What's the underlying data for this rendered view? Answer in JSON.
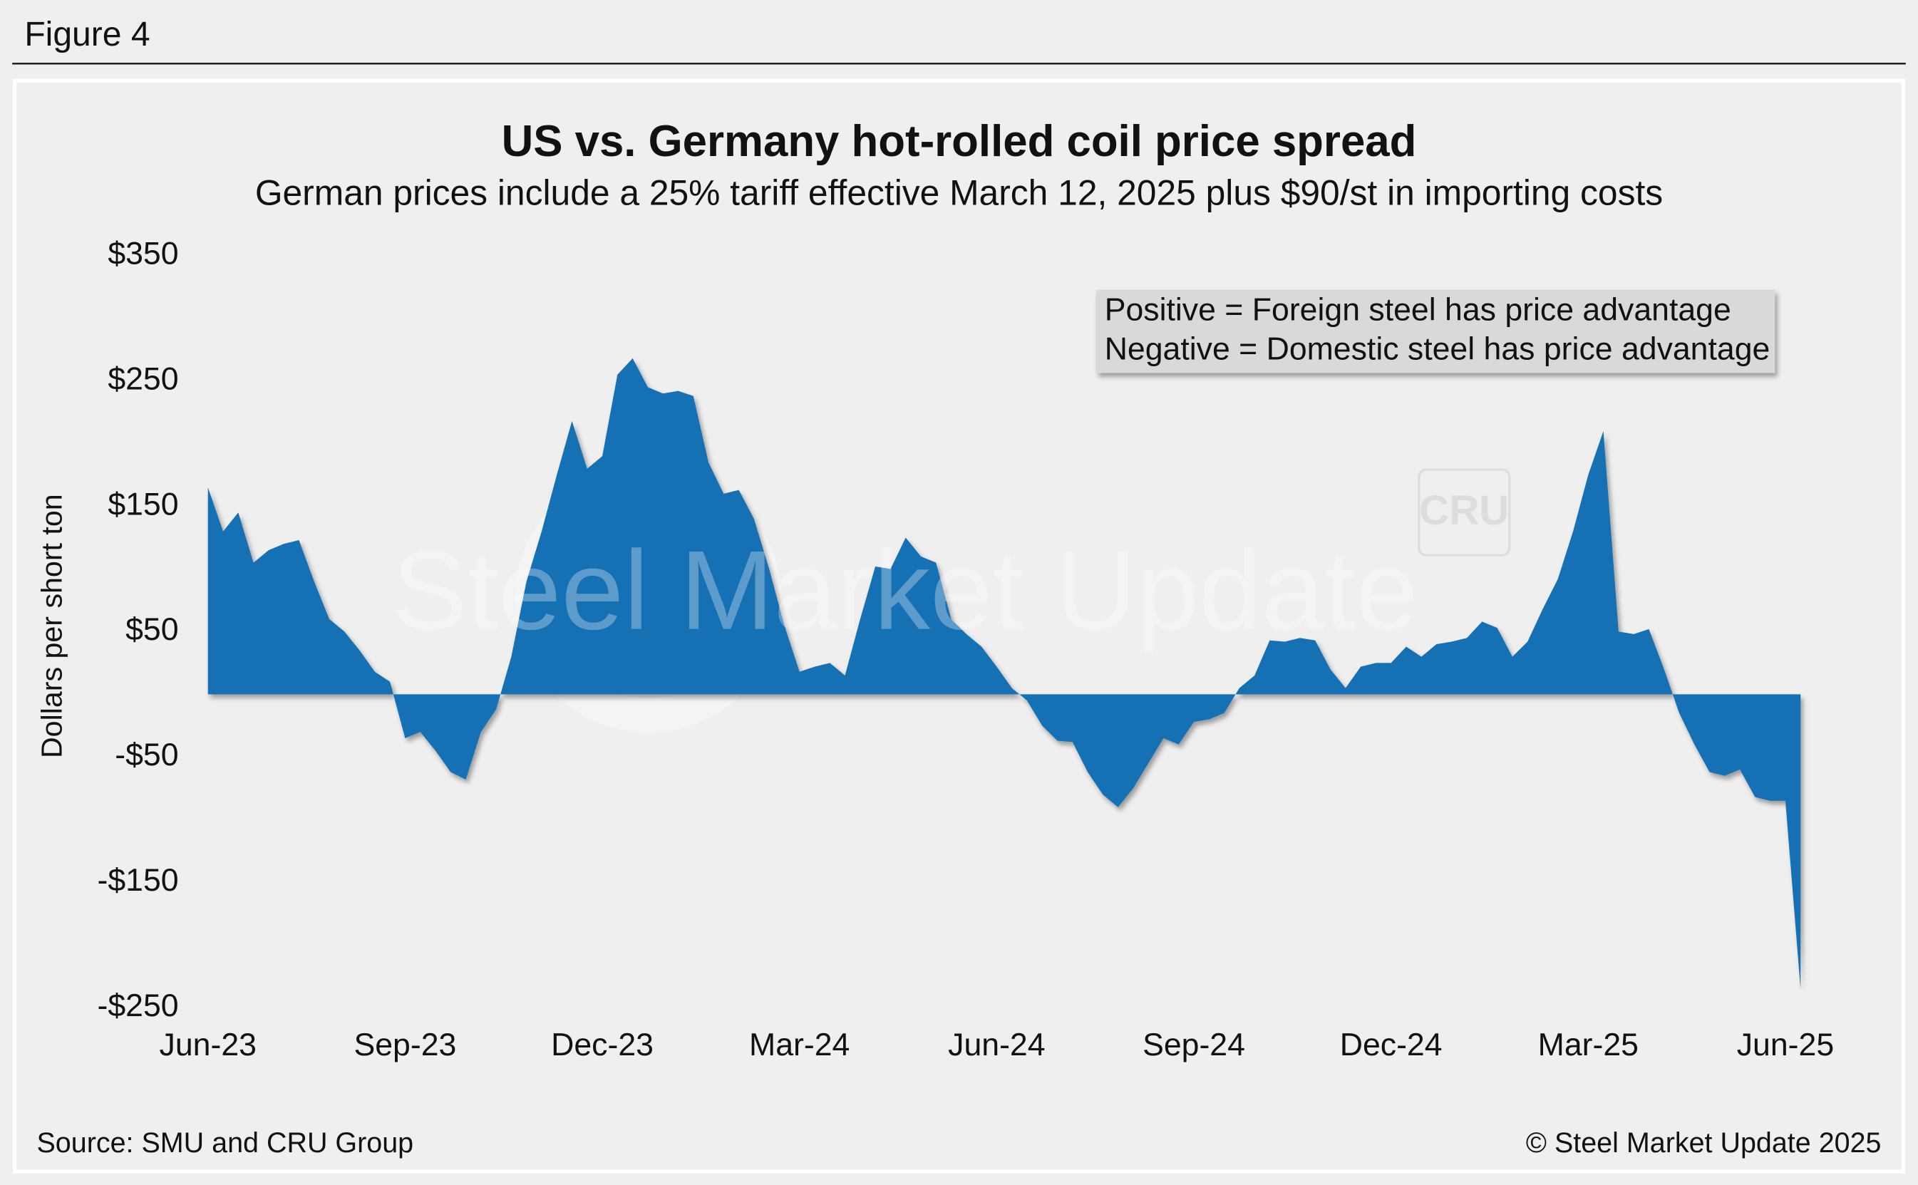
{
  "header": "Figure 4",
  "chart_data": {
    "type": "area",
    "title": "US vs. Germany hot-rolled coil price spread",
    "subtitle": "German prices include a 25% tariff effective March 12, 2025 plus $90/st in importing costs",
    "y_label": "Dollars per short ton",
    "annotation": [
      "Positive = Foreign steel has price advantage",
      "Negative = Domestic steel has price advantage"
    ],
    "watermark": [
      "Steel Market Update",
      "CRU"
    ],
    "source": "Source: SMU and CRU Group",
    "copyright": "© Steel Market Update 2025",
    "color": "#1570b4",
    "categories": [
      "Jun-23",
      null,
      null,
      null,
      null,
      null,
      null,
      null,
      null,
      null,
      null,
      null,
      null,
      "Sep-23",
      null,
      null,
      null,
      null,
      null,
      null,
      null,
      null,
      null,
      null,
      null,
      null,
      "Dec-23",
      null,
      null,
      null,
      null,
      null,
      null,
      null,
      null,
      null,
      null,
      null,
      null,
      "Mar-24",
      null,
      null,
      null,
      null,
      null,
      null,
      null,
      null,
      null,
      null,
      null,
      null,
      "Jun-24",
      null,
      null,
      null,
      null,
      null,
      null,
      null,
      null,
      null,
      null,
      null,
      null,
      "Sep-24",
      null,
      null,
      null,
      null,
      null,
      null,
      null,
      null,
      null,
      null,
      null,
      null,
      "Dec-24",
      null,
      null,
      null,
      null,
      null,
      null,
      null,
      null,
      null,
      null,
      null,
      null,
      "Mar-25",
      null,
      null,
      null,
      null,
      null,
      null,
      null,
      null,
      null,
      null,
      null,
      null,
      "Jun-25",
      null
    ],
    "values": [
      165,
      130,
      145,
      105,
      115,
      120,
      123,
      90,
      60,
      50,
      35,
      18,
      10,
      -35,
      -30,
      -45,
      -62,
      -68,
      -30,
      -12,
      30,
      90,
      130,
      175,
      218,
      180,
      190,
      255,
      268,
      245,
      240,
      242,
      238,
      185,
      160,
      163,
      140,
      100,
      55,
      18,
      22,
      25,
      15,
      60,
      102,
      100,
      125,
      110,
      105,
      60,
      48,
      38,
      22,
      5,
      -5,
      -25,
      -37,
      -38,
      -62,
      -80,
      -90,
      -75,
      -55,
      -35,
      -40,
      -22,
      -20,
      -15,
      5,
      15,
      43,
      42,
      45,
      43,
      20,
      5,
      22,
      25,
      25,
      38,
      30,
      40,
      42,
      45,
      58,
      53,
      30,
      42,
      68,
      92,
      130,
      175,
      210,
      50,
      48,
      52,
      20,
      -15,
      -40,
      -62,
      -65,
      -60,
      -82,
      -85,
      -85,
      -235
    ],
    "ylim": [
      -250,
      350
    ],
    "yticks": [
      {
        "value": 350,
        "label": "$350"
      },
      {
        "value": 250,
        "label": "$250"
      },
      {
        "value": 150,
        "label": "$150"
      },
      {
        "value": 50,
        "label": "$50"
      },
      {
        "value": -50,
        "label": "-$50"
      },
      {
        "value": -150,
        "label": "-$150"
      },
      {
        "value": -250,
        "label": "-$250"
      }
    ]
  }
}
